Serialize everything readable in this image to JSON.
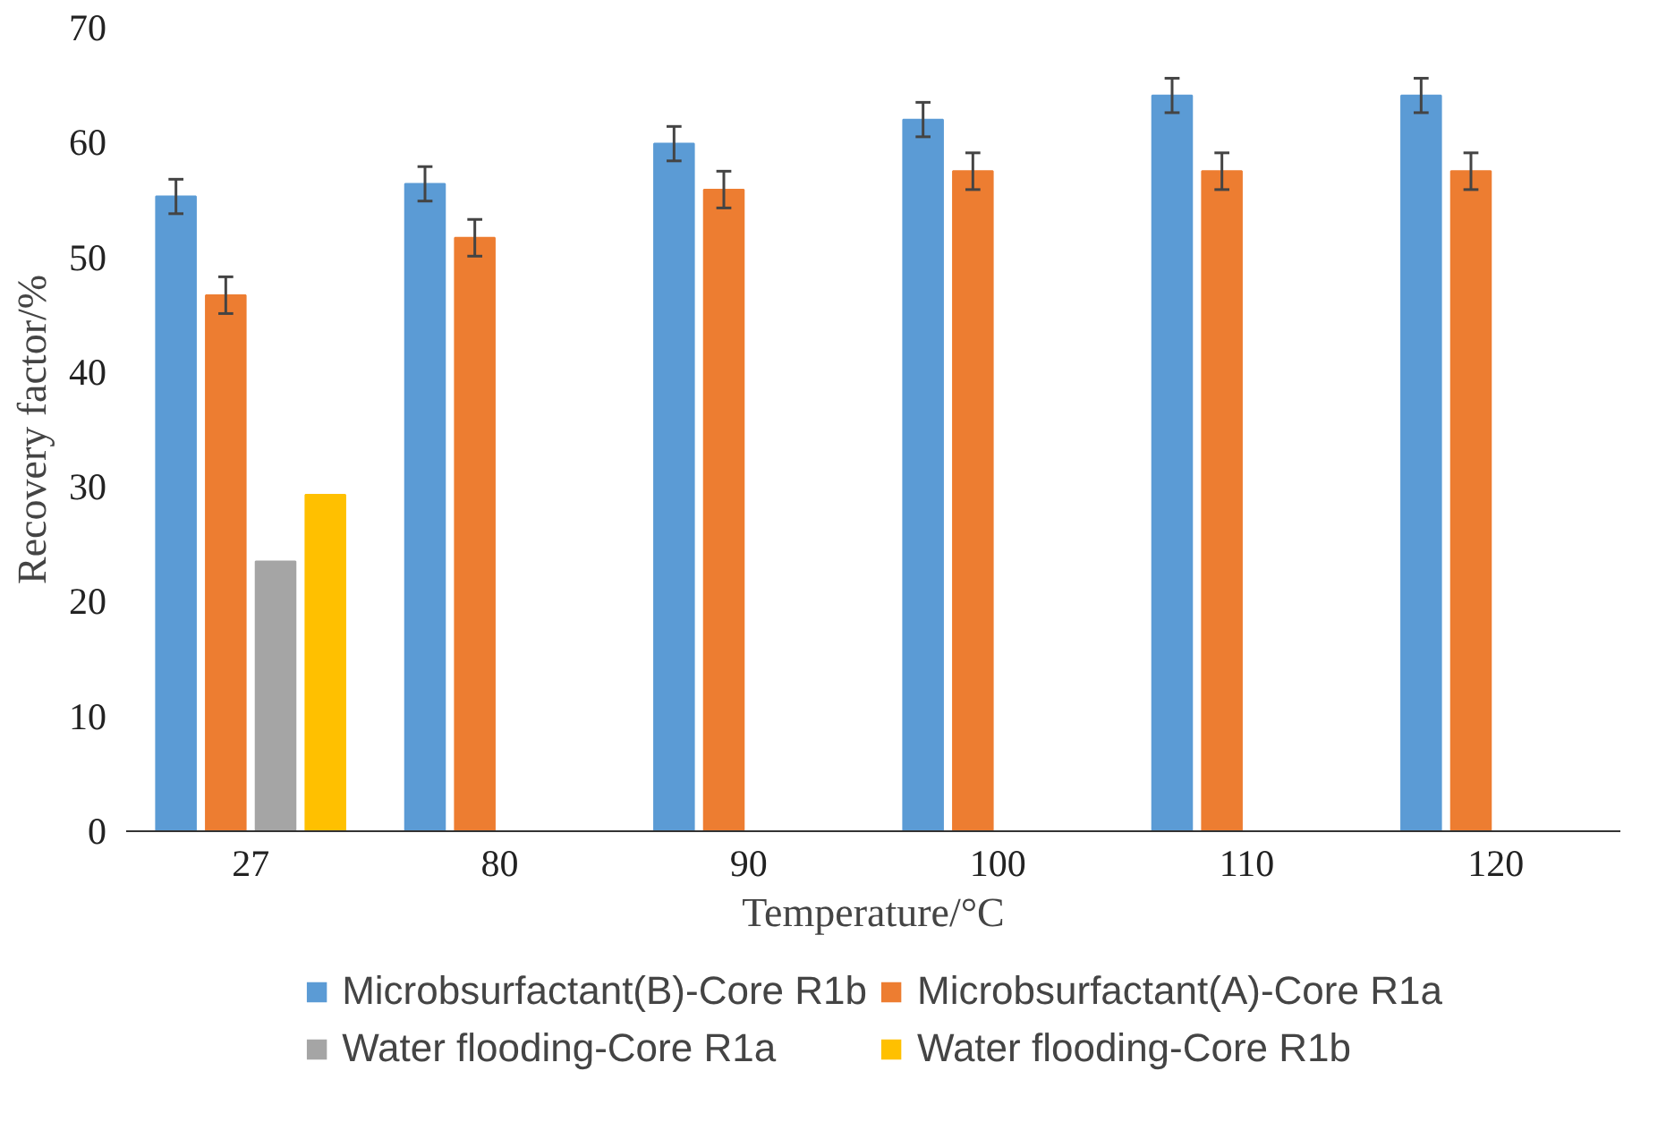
{
  "chart_data": {
    "type": "bar",
    "xlabel": "Temperature/°C",
    "ylabel": "Recovery factor/%",
    "categories": [
      "27",
      "80",
      "90",
      "100",
      "110",
      "120"
    ],
    "ylim": [
      0,
      70
    ],
    "yticks": [
      0,
      10,
      20,
      30,
      40,
      50,
      60,
      70
    ],
    "grid": false,
    "legend": "bottom",
    "series": [
      {
        "name": "Microbsurfactant(B)-Core R1b",
        "color": "#5b9bd5",
        "values": [
          55.3,
          56.4,
          59.9,
          62.0,
          64.1,
          64.1
        ],
        "errors": [
          1.5,
          1.5,
          1.5,
          1.5,
          1.5,
          1.5
        ]
      },
      {
        "name": "Microbsurfactant(A)-Core R1a",
        "color": "#ed7d31",
        "values": [
          46.7,
          51.7,
          55.9,
          57.5,
          57.5,
          57.5
        ],
        "errors": [
          1.6,
          1.6,
          1.6,
          1.6,
          1.6,
          1.6
        ]
      },
      {
        "name": "Water flooding-Core R1a",
        "color": "#a5a5a5",
        "values": [
          23.5,
          null,
          null,
          null,
          null,
          null
        ]
      },
      {
        "name": "Water flooding-Core R1b",
        "color": "#ffc000",
        "values": [
          29.3,
          null,
          null,
          null,
          null,
          null
        ]
      }
    ]
  }
}
